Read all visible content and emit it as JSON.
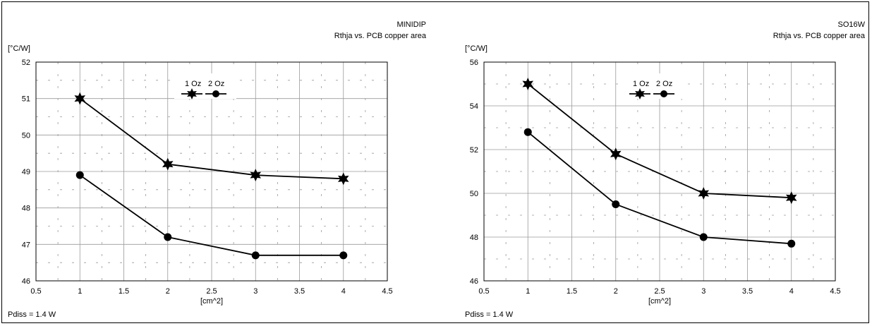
{
  "chart_data": [
    {
      "type": "line",
      "title": "MINIDIP",
      "subtitle": "Rthja vs. PCB copper area",
      "ylabel": "[°C/W]",
      "xlabel": "[cm^2]",
      "footnote": "Pdiss = 1.4 W",
      "xlim": [
        0.5,
        4.5
      ],
      "ylim": [
        46,
        52
      ],
      "xticks": [
        "0.5",
        "1",
        "1.5",
        "2",
        "2.5",
        "3",
        "3.5",
        "4",
        "4.5"
      ],
      "yticks": [
        "46",
        "47",
        "48",
        "49",
        "50",
        "51",
        "52"
      ],
      "grid": true,
      "legend_position": "top-center",
      "legend_labels": [
        "1 Oz",
        "2 Oz"
      ],
      "series": [
        {
          "name": "1 Oz",
          "marker": "star",
          "x": [
            1,
            2,
            3,
            4
          ],
          "y": [
            51.0,
            49.2,
            48.9,
            48.8
          ]
        },
        {
          "name": "2 Oz",
          "marker": "circle",
          "x": [
            1,
            2,
            3,
            4
          ],
          "y": [
            48.9,
            47.2,
            46.7,
            46.7
          ]
        }
      ]
    },
    {
      "type": "line",
      "title": "SO16W",
      "subtitle": "Rthja vs. PCB copper area",
      "ylabel": "[°C/W]",
      "xlabel": "[cm^2]",
      "footnote": "Pdiss = 1.4 W",
      "xlim": [
        0.5,
        4.5
      ],
      "ylim": [
        46,
        56
      ],
      "xticks": [
        "0.5",
        "1",
        "1.5",
        "2",
        "2.5",
        "3",
        "3.5",
        "4",
        "4.5"
      ],
      "yticks": [
        "46",
        "48",
        "50",
        "52",
        "54",
        "56"
      ],
      "grid": true,
      "legend_position": "top-center",
      "legend_labels": [
        "1 Oz",
        "2 Oz"
      ],
      "series": [
        {
          "name": "1 Oz",
          "marker": "star",
          "x": [
            1,
            2,
            3,
            4
          ],
          "y": [
            55.0,
            51.8,
            50.0,
            49.8
          ]
        },
        {
          "name": "2 Oz",
          "marker": "circle",
          "x": [
            1,
            2,
            3,
            4
          ],
          "y": [
            52.8,
            49.5,
            48.0,
            47.7
          ]
        }
      ]
    }
  ]
}
